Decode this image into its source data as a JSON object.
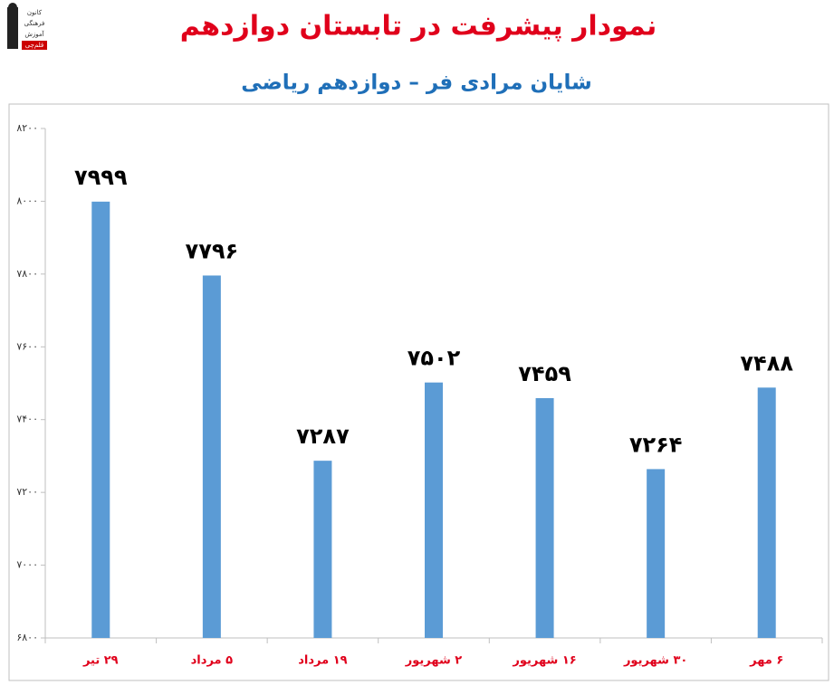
{
  "logo": [
    "کانون",
    "فرهنگی",
    "آموزش",
    "قلم‌چی"
  ],
  "chart_data": {
    "type": "bar",
    "title": "نمودار پیشرفت در تابستان دوازدهم",
    "subtitle": "شایان مرادی فر – دوازدهم ریاضی",
    "categories": [
      "۲۹ تیر",
      "۵ مرداد",
      "۱۹ مرداد",
      "۲ شهریور",
      "۱۶ شهریور",
      "۳۰ شهریور",
      "۶ مهر"
    ],
    "values": [
      7999,
      7796,
      7287,
      7502,
      7459,
      7264,
      7488
    ],
    "value_labels": [
      "۷۹۹۹",
      "۷۷۹۶",
      "۷۲۸۷",
      "۷۵۰۲",
      "۷۴۵۹",
      "۷۲۶۴",
      "۷۴۸۸"
    ],
    "color": "#5b9bd5",
    "ylim": [
      6800,
      8200
    ],
    "yticks": [
      {
        "value": 6800,
        "label": "۶۸۰۰"
      },
      {
        "value": 7000,
        "label": "۷۰۰۰"
      },
      {
        "value": 7200,
        "label": "۷۲۰۰"
      },
      {
        "value": 7400,
        "label": "۷۴۰۰"
      },
      {
        "value": 7600,
        "label": "۷۶۰۰"
      },
      {
        "value": 7800,
        "label": "۷۸۰۰"
      },
      {
        "value": 8000,
        "label": "۸۰۰۰"
      },
      {
        "value": 8200,
        "label": "۸۲۰۰"
      }
    ],
    "grid": false
  }
}
